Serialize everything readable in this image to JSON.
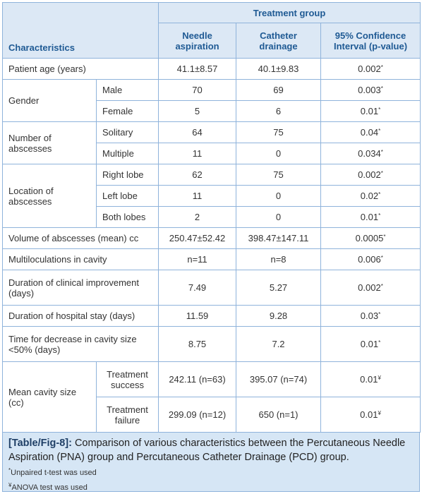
{
  "table": {
    "header": {
      "characteristics": "Characteristics",
      "group": "Treatment group",
      "needle": "Needle aspiration",
      "catheter": "Catheter drainage",
      "ci": "95% Confidence Interval (p-value)"
    },
    "rows": [
      {
        "label": "Patient age (years)",
        "items": [
          {
            "needle": "41.1±8.57",
            "catheter": "40.1±9.83",
            "p": "0.002",
            "mark": "*"
          }
        ]
      },
      {
        "label": "Gender",
        "items": [
          {
            "sub": "Male",
            "needle": "70",
            "catheter": "69",
            "p": "0.003",
            "mark": "*"
          },
          {
            "sub": "Female",
            "needle": "5",
            "catheter": "6",
            "p": "0.01",
            "mark": "*"
          }
        ]
      },
      {
        "label": "Number of abscesses",
        "items": [
          {
            "sub": "Solitary",
            "needle": "64",
            "catheter": "75",
            "p": "0.04",
            "mark": "*"
          },
          {
            "sub": "Multiple",
            "needle": "11",
            "catheter": "0",
            "p": "0.034",
            "mark": "*"
          }
        ]
      },
      {
        "label": "Location of abscesses",
        "items": [
          {
            "sub": "Right lobe",
            "needle": "62",
            "catheter": "75",
            "p": "0.002",
            "mark": "*"
          },
          {
            "sub": "Left lobe",
            "needle": "11",
            "catheter": "0",
            "p": "0.02",
            "mark": "*"
          },
          {
            "sub": "Both lobes",
            "needle": "2",
            "catheter": "0",
            "p": "0.01",
            "mark": "*"
          }
        ]
      },
      {
        "label": "Volume of abscesses (mean) cc",
        "items": [
          {
            "needle": "250.47±52.42",
            "catheter": "398.47±147.11",
            "p": "0.0005",
            "mark": "*"
          }
        ]
      },
      {
        "label": "Multiloculations in cavity",
        "items": [
          {
            "needle": "n=11",
            "catheter": "n=8",
            "p": "0.006",
            "mark": "*"
          }
        ]
      },
      {
        "label": "Duration of clinical improvement (days)",
        "items": [
          {
            "needle": "7.49",
            "catheter": "5.27",
            "p": "0.002",
            "mark": "*"
          }
        ]
      },
      {
        "label": "Duration of hospital stay (days)",
        "items": [
          {
            "needle": "11.59",
            "catheter": "9.28",
            "p": "0.03",
            "mark": "*"
          }
        ]
      },
      {
        "label": "Time for decrease in cavity size <50% (days)",
        "items": [
          {
            "needle": "8.75",
            "catheter": "7.2",
            "p": "0.01",
            "mark": "*"
          }
        ]
      },
      {
        "label": "Mean cavity size (cc)",
        "items": [
          {
            "sub": "Treatment success",
            "needle": "242.11 (n=63)",
            "catheter": "395.07 (n=74)",
            "p": "0.01",
            "mark": "¥"
          },
          {
            "sub": "Treatment failure",
            "needle": "299.09 (n=12)",
            "catheter": "650 (n=1)",
            "p": "0.01",
            "mark": "¥"
          }
        ]
      }
    ],
    "caption": {
      "tag": "[Table/Fig-8]:",
      "text": "Comparison of various characteristics between the Percutaneous Needle Aspiration (PNA) group and Percutaneous Catheter Drainage (PCD) group."
    },
    "footnotes": [
      {
        "mark": "*",
        "text": "Unpaired t-test was used"
      },
      {
        "mark": "¥",
        "text": "ANOVA test was used"
      }
    ]
  }
}
